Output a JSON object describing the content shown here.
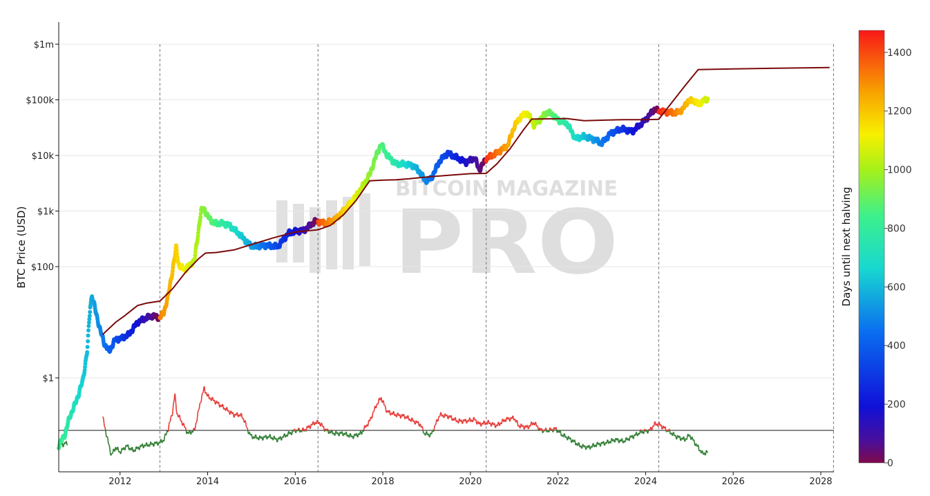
{
  "watermark": {
    "line1": "BITCOIN MAGAZINE",
    "line2": "PRO"
  },
  "colors": {
    "price_line": "#7a0a0a",
    "oscillator_above": "#e53935",
    "oscillator_below": "#2e7d32",
    "baseline": "#111111",
    "halving_line": "#777777",
    "grid": "#e6e6e6"
  },
  "chart_data": {
    "type": "scatter",
    "title": "",
    "ylabel": "BTC Price (USD)",
    "ylog": true,
    "ylim": [
      0.01,
      2500000
    ],
    "xlim": [
      2010.6,
      2028.3
    ],
    "x_ticks": [
      "2012",
      "2014",
      "2016",
      "2018",
      "2020",
      "2022",
      "2024",
      "2026",
      "2028"
    ],
    "x_tick_values": [
      2012,
      2014,
      2016,
      2018,
      2020,
      2022,
      2024,
      2026,
      2028
    ],
    "y_ticks": [
      "$1",
      "$100",
      "$1k",
      "$10k",
      "$100k",
      "$1m"
    ],
    "y_tick_values": [
      1,
      100,
      1000,
      10000,
      100000,
      1000000
    ],
    "grid": true,
    "halvings": [
      2012.91,
      2016.52,
      2020.36,
      2024.3
    ],
    "colorbar": {
      "label": "Days until next halving",
      "range": [
        0,
        1475
      ],
      "ticks": [
        "0",
        "200",
        "400",
        "600",
        "800",
        "1000",
        "1200",
        "1400"
      ],
      "tick_values": [
        0,
        200,
        400,
        600,
        800,
        1000,
        1200,
        1400
      ],
      "colorscale": "jet (0 dark purple → 1475 red)"
    },
    "price": {
      "x": [
        2010.6,
        2010.75,
        2010.85,
        2010.95,
        2011.05,
        2011.15,
        2011.25,
        2011.32,
        2011.36,
        2011.45,
        2011.55,
        2011.65,
        2011.75,
        2011.9,
        2012.0,
        2012.2,
        2012.4,
        2012.6,
        2012.75,
        2012.91,
        2013.0,
        2013.1,
        2013.25,
        2013.28,
        2013.35,
        2013.5,
        2013.7,
        2013.85,
        2013.92,
        2014.0,
        2014.15,
        2014.35,
        2014.5,
        2014.7,
        2014.95,
        2015.05,
        2015.3,
        2015.6,
        2015.85,
        2016.0,
        2016.2,
        2016.45,
        2016.52,
        2016.7,
        2016.9,
        2017.1,
        2017.3,
        2017.5,
        2017.7,
        2017.85,
        2017.96,
        2018.1,
        2018.3,
        2018.5,
        2018.7,
        2018.85,
        2018.96,
        2019.1,
        2019.3,
        2019.48,
        2019.7,
        2019.9,
        2020.1,
        2020.2,
        2020.36,
        2020.6,
        2020.85,
        2021.0,
        2021.15,
        2021.3,
        2021.45,
        2021.6,
        2021.75,
        2021.87,
        2022.0,
        2022.2,
        2022.4,
        2022.6,
        2022.85,
        2023.0,
        2023.2,
        2023.45,
        2023.7,
        2023.9,
        2024.0,
        2024.2,
        2024.3,
        2024.5,
        2024.7,
        2024.85,
        2024.96,
        2025.1,
        2025.2,
        2025.3,
        2025.42
      ],
      "y": [
        0.06,
        0.1,
        0.2,
        0.3,
        0.5,
        0.9,
        3,
        20,
        30,
        15,
        7,
        4,
        3,
        5,
        5,
        6,
        10,
        12,
        13,
        12,
        15,
        30,
        150,
        220,
        100,
        90,
        130,
        1000,
        1100,
        800,
        600,
        600,
        550,
        400,
        250,
        230,
        240,
        230,
        400,
        430,
        450,
        650,
        640,
        600,
        700,
        1000,
        1500,
        2500,
        4500,
        10000,
        16000,
        10000,
        7000,
        7000,
        6500,
        5000,
        3500,
        3800,
        8000,
        11000,
        9000,
        7500,
        9000,
        5500,
        8800,
        11000,
        15000,
        33000,
        50000,
        58000,
        35000,
        45000,
        60000,
        55000,
        43000,
        38000,
        20000,
        22000,
        19000,
        16500,
        25000,
        30000,
        27000,
        37000,
        44000,
        68000,
        63000,
        60000,
        58000,
        67000,
        95000,
        97000,
        83000,
        94000,
        105000
      ]
    },
    "price_line": {
      "x": [
        2011.6,
        2011.9,
        2012.1,
        2012.4,
        2012.6,
        2012.91,
        2013.2,
        2013.5,
        2013.8,
        2013.95,
        2014.2,
        2014.6,
        2015.0,
        2015.5,
        2016.0,
        2016.52,
        2016.8,
        2017.1,
        2017.4,
        2017.7,
        2018.0,
        2018.3,
        2018.6,
        2019.0,
        2019.5,
        2020.0,
        2020.36,
        2020.6,
        2020.9,
        2021.2,
        2021.4,
        2021.8,
        2022.2,
        2022.6,
        2023.0,
        2023.5,
        2024.0,
        2024.3,
        2024.6,
        2024.9,
        2025.2,
        2026.0,
        2027.0,
        2028.2
      ],
      "y": [
        6,
        10,
        13,
        20,
        22,
        24,
        40,
        80,
        140,
        175,
        180,
        200,
        250,
        330,
        420,
        460,
        550,
        850,
        1600,
        3500,
        3600,
        3650,
        3800,
        4100,
        4400,
        4700,
        4750,
        7000,
        13000,
        28000,
        45000,
        45500,
        46000,
        42000,
        43000,
        44000,
        44000,
        44500,
        90000,
        180000,
        350000,
        360000,
        370000,
        380000
      ]
    },
    "oscillator": {
      "name": "",
      "baseline_value": 0,
      "x": [
        2010.6,
        2010.7,
        2010.8,
        2011.6,
        2011.7,
        2011.8,
        2011.9,
        2012.0,
        2012.15,
        2012.3,
        2012.5,
        2012.7,
        2012.9,
        2013.0,
        2013.1,
        2013.2,
        2013.25,
        2013.3,
        2013.4,
        2013.55,
        2013.7,
        2013.85,
        2013.92,
        2014.0,
        2014.2,
        2014.4,
        2014.6,
        2014.75,
        2014.85,
        2014.9,
        2015.0,
        2015.2,
        2015.4,
        2015.6,
        2015.8,
        2016.0,
        2016.2,
        2016.45,
        2016.55,
        2016.7,
        2016.9,
        2017.1,
        2017.3,
        2017.5,
        2017.7,
        2017.85,
        2017.96,
        2018.1,
        2018.3,
        2018.5,
        2018.7,
        2018.85,
        2018.95,
        2019.1,
        2019.3,
        2019.5,
        2019.7,
        2019.9,
        2020.1,
        2020.2,
        2020.4,
        2020.6,
        2020.8,
        2021.0,
        2021.1,
        2021.3,
        2021.45,
        2021.6,
        2021.8,
        2021.95,
        2022.1,
        2022.3,
        2022.5,
        2022.7,
        2022.9,
        2023.1,
        2023.3,
        2023.5,
        2023.7,
        2023.9,
        2024.1,
        2024.2,
        2024.3,
        2024.5,
        2024.7,
        2024.9,
        2025.0,
        2025.1,
        2025.2,
        2025.3,
        2025.42
      ],
      "y": [
        -0.45,
        -0.45,
        -0.4,
        0.45,
        -0.2,
        -0.8,
        -0.55,
        -0.7,
        -0.5,
        -0.65,
        -0.5,
        -0.45,
        -0.4,
        -0.3,
        0.05,
        0.6,
        1.15,
        0.55,
        0.3,
        -0.1,
        0.0,
        1.0,
        1.35,
        1.1,
        0.9,
        0.7,
        0.5,
        0.5,
        0.3,
        0.05,
        -0.2,
        -0.25,
        -0.2,
        -0.3,
        -0.15,
        0.0,
        0.0,
        0.25,
        0.25,
        0.0,
        -0.1,
        -0.1,
        -0.2,
        -0.1,
        0.3,
        0.8,
        1.05,
        0.6,
        0.5,
        0.45,
        0.3,
        0.2,
        -0.1,
        -0.15,
        0.5,
        0.45,
        0.3,
        0.3,
        0.35,
        0.2,
        0.25,
        0.15,
        0.35,
        0.4,
        0.15,
        0.1,
        0.25,
        0.0,
        0.0,
        0.05,
        -0.15,
        -0.3,
        -0.5,
        -0.55,
        -0.45,
        -0.4,
        -0.3,
        -0.35,
        -0.2,
        -0.05,
        0.0,
        0.2,
        0.2,
        0.0,
        -0.2,
        -0.3,
        -0.15,
        -0.35,
        -0.55,
        -0.75,
        -0.7
      ]
    }
  }
}
